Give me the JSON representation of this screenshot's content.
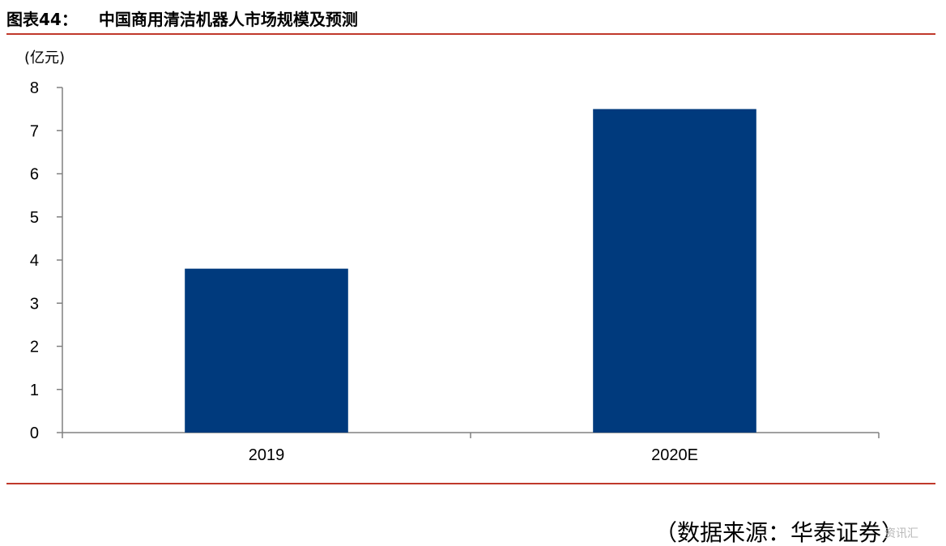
{
  "header": {
    "figure_label": "图表44：",
    "title": "中国商用清洁机器人市场规模及预测"
  },
  "footer": {
    "source": "（数据来源：华泰证券）",
    "watermark": "资讯汇"
  },
  "colors": {
    "rule": "#c0392b",
    "bar": "#003a7d",
    "axis": "#808080",
    "text": "#000000"
  },
  "chart_data": {
    "type": "bar",
    "title": "中国商用清洁机器人市场规模及预测",
    "unit_label": "(亿元)",
    "categories": [
      "2019",
      "2020E"
    ],
    "series": [
      {
        "values": [
          3.8,
          7.5
        ]
      }
    ],
    "ylim": [
      0,
      8
    ],
    "yticks": [
      "0",
      "1",
      "2",
      "3",
      "4",
      "5",
      "6",
      "7",
      "8"
    ],
    "grid": false,
    "legend": "none"
  }
}
